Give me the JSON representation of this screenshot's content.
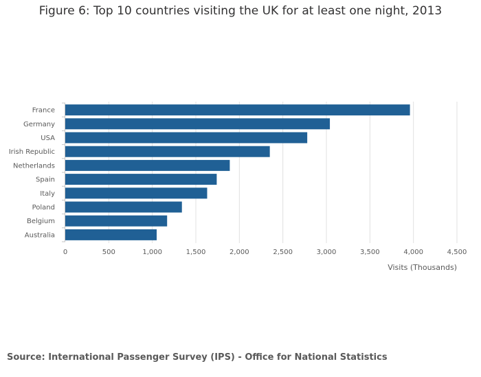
{
  "page": {
    "title": "Figure 6: Top 10 countries visiting the UK for at least one night, 2013",
    "source": "Source: International Passenger Survey (IPS) - Office for National Statistics"
  },
  "colors": {
    "bar": "#206095",
    "grid": "#e0e0e0",
    "axis": "#c6c6c6",
    "text": "#595959",
    "title": "#323132"
  },
  "chart_data": {
    "type": "bar",
    "orientation": "horizontal",
    "title": "Figure 6: Top 10 countries visiting the UK for at least one night, 2013",
    "categories": [
      "France",
      "Germany",
      "USA",
      "Irish Republic",
      "Netherlands",
      "Spain",
      "Italy",
      "Poland",
      "Belgium",
      "Australia"
    ],
    "values": [
      3960,
      3040,
      2780,
      2350,
      1890,
      1740,
      1630,
      1340,
      1170,
      1050
    ],
    "xlabel": "Visits (Thousands)",
    "ylabel": "",
    "xlim": [
      0,
      4500
    ],
    "xticks": [
      0,
      500,
      1000,
      1500,
      2000,
      2500,
      3000,
      3500,
      4000,
      4500
    ],
    "xtick_labels": [
      "0",
      "500",
      "1,000",
      "1,500",
      "2,000",
      "2,500",
      "3,000",
      "3,500",
      "4,000",
      "4,500"
    ],
    "grid": true,
    "legend": "none"
  }
}
